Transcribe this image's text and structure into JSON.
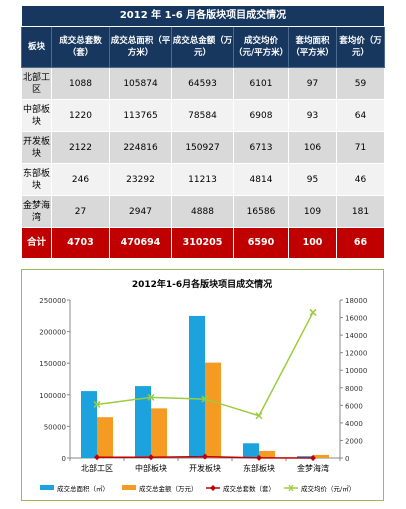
{
  "table": {
    "title": "2012 年 1-6 月各版块项目成交情况",
    "headers": [
      "板块",
      "成交总套数（套）",
      "成交总面积（平方米）",
      "成交总金额（万元）",
      "成交均价（元/平方米）",
      "套均面积（平方米）",
      "套均价（万元）"
    ],
    "rows": [
      [
        "北部工区",
        "1088",
        "105874",
        "64593",
        "6101",
        "97",
        "59"
      ],
      [
        "中部板块",
        "1220",
        "113765",
        "78584",
        "6908",
        "93",
        "64"
      ],
      [
        "开发板块",
        "2122",
        "224816",
        "150927",
        "6713",
        "106",
        "71"
      ],
      [
        "东部板块",
        "246",
        "23292",
        "11213",
        "4814",
        "95",
        "46"
      ],
      [
        "金梦海湾",
        "27",
        "2947",
        "4888",
        "16586",
        "109",
        "181"
      ]
    ],
    "total": [
      "合计",
      "4703",
      "470694",
      "310205",
      "6590",
      "100",
      "66"
    ]
  },
  "chart_data": {
    "type": "bar",
    "title": "2012年1-6月各版块项目成交情况",
    "categories": [
      "北部工区",
      "中部板块",
      "开发板块",
      "东部板块",
      "金梦海湾"
    ],
    "ylim": [
      0,
      250000
    ],
    "y2lim": [
      0,
      18000
    ],
    "yticks": [
      "0",
      "50000",
      "100000",
      "150000",
      "200000",
      "250000"
    ],
    "y2ticks": [
      "0",
      "2000",
      "4000",
      "6000",
      "8000",
      "10000",
      "12000",
      "14000",
      "16000",
      "18000"
    ],
    "series": [
      {
        "name": "成交总面积（㎡）",
        "kind": "bar",
        "axis": "left",
        "color": "#1ca3de",
        "values": [
          105874,
          113765,
          224816,
          23292,
          2947
        ]
      },
      {
        "name": "成交总金额（万元）",
        "kind": "bar",
        "axis": "left",
        "color": "#f59b23",
        "values": [
          64593,
          78584,
          150927,
          11213,
          4888
        ]
      },
      {
        "name": "成交总套数（套）",
        "kind": "line",
        "axis": "left",
        "color": "#c00000",
        "values": [
          1088,
          1220,
          2122,
          246,
          27
        ]
      },
      {
        "name": "成交均价（元/㎡）",
        "kind": "line",
        "axis": "right",
        "color": "#9bcc3c",
        "values": [
          6101,
          6908,
          6713,
          4814,
          16586
        ]
      }
    ],
    "legend_position": "bottom",
    "grid": false
  }
}
